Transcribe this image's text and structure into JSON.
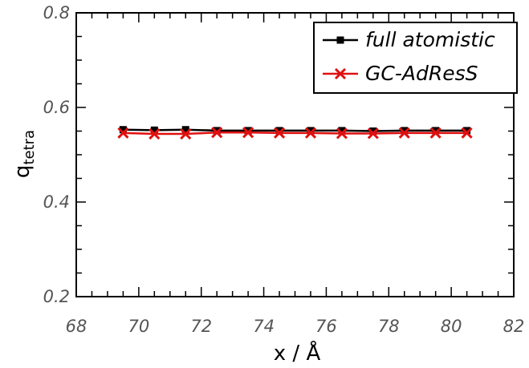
{
  "chart_data": {
    "type": "line",
    "xlabel": "x / Å",
    "ylabel": "q",
    "ylabel_subscript": "tetra",
    "xlim": [
      68,
      82
    ],
    "ylim": [
      0.2,
      0.8
    ],
    "xticks": [
      "68",
      "70",
      "72",
      "74",
      "76",
      "78",
      "80",
      "82"
    ],
    "yticks": [
      "0.2",
      "0.4",
      "0.6",
      "0.8"
    ],
    "grid": false,
    "legend_position": "top-right",
    "series": [
      {
        "name": "full atomistic",
        "color": "#000000",
        "marker": "square",
        "x": [
          69.5,
          70.5,
          71.5,
          72.5,
          73.5,
          74.5,
          75.5,
          76.5,
          77.5,
          78.5,
          79.5,
          80.5
        ],
        "y": [
          0.553,
          0.552,
          0.553,
          0.551,
          0.551,
          0.551,
          0.551,
          0.551,
          0.55,
          0.551,
          0.551,
          0.551
        ]
      },
      {
        "name": "GC-AdResS",
        "color": "#e01010",
        "marker": "x",
        "x": [
          69.5,
          70.5,
          71.5,
          72.5,
          73.5,
          74.5,
          75.5,
          76.5,
          77.5,
          78.5,
          79.5,
          80.5
        ],
        "y": [
          0.546,
          0.544,
          0.544,
          0.547,
          0.547,
          0.546,
          0.546,
          0.545,
          0.545,
          0.546,
          0.546,
          0.546
        ]
      }
    ]
  }
}
